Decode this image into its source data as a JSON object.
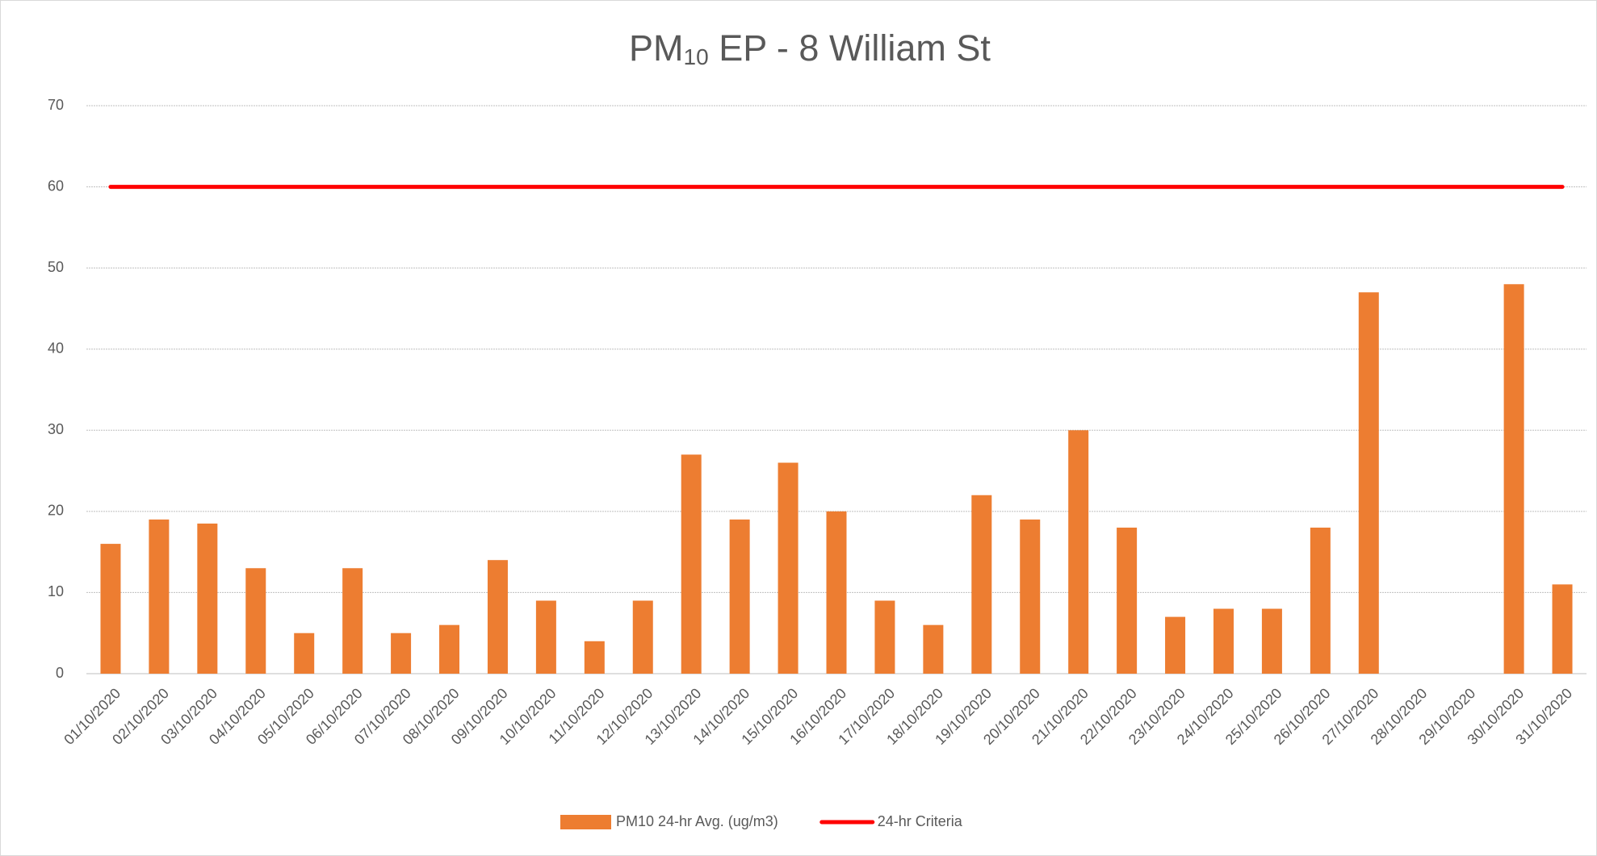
{
  "chart_data": {
    "type": "bar",
    "title_parts": [
      "PM",
      "10",
      " EP - 8 William St"
    ],
    "categories": [
      "01/10/2020",
      "02/10/2020",
      "03/10/2020",
      "04/10/2020",
      "05/10/2020",
      "06/10/2020",
      "07/10/2020",
      "08/10/2020",
      "09/10/2020",
      "10/10/2020",
      "11/10/2020",
      "12/10/2020",
      "13/10/2020",
      "14/10/2020",
      "15/10/2020",
      "16/10/2020",
      "17/10/2020",
      "18/10/2020",
      "19/10/2020",
      "20/10/2020",
      "21/10/2020",
      "22/10/2020",
      "23/10/2020",
      "24/10/2020",
      "25/10/2020",
      "26/10/2020",
      "27/10/2020",
      "28/10/2020",
      "29/10/2020",
      "30/10/2020",
      "31/10/2020"
    ],
    "series": [
      {
        "name": "PM10 24-hr Avg. (ug/m3)",
        "type": "bar",
        "color": "#ed7d31",
        "values": [
          16,
          19,
          18.5,
          13,
          5,
          13,
          5,
          6,
          14,
          9,
          4,
          9,
          27,
          19,
          26,
          20,
          9,
          6,
          22,
          19,
          30,
          18,
          7,
          8,
          8,
          18,
          47,
          null,
          null,
          48,
          11
        ]
      },
      {
        "name": "24-hr Criteria",
        "type": "line",
        "color": "#ff0000",
        "values": [
          60,
          60,
          60,
          60,
          60,
          60,
          60,
          60,
          60,
          60,
          60,
          60,
          60,
          60,
          60,
          60,
          60,
          60,
          60,
          60,
          60,
          60,
          60,
          60,
          60,
          60,
          60,
          60,
          60,
          60,
          60
        ]
      }
    ],
    "ylim": [
      0,
      70
    ],
    "yticks": [
      0,
      10,
      20,
      30,
      40,
      50,
      60,
      70
    ],
    "grid": true,
    "legend": "bottom"
  }
}
